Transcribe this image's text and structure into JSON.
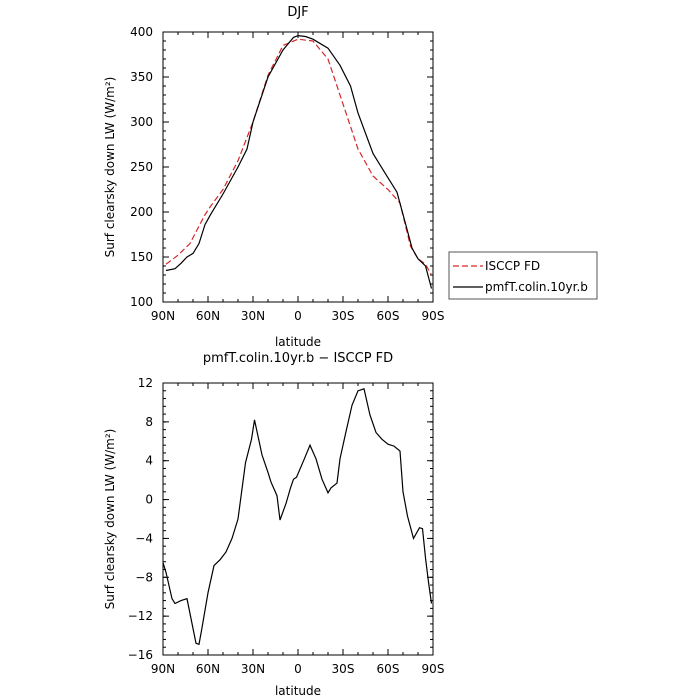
{
  "chart_data": [
    {
      "type": "line",
      "title": "DJF",
      "xlabel": "latitude",
      "ylabel": "Surf clearsky down LW (W/m²)",
      "xlim": [
        90,
        -90
      ],
      "ylim": [
        100,
        400
      ],
      "x_ticks": [
        90,
        60,
        30,
        0,
        -30,
        -60,
        -90
      ],
      "x_tick_labels": [
        "90N",
        "60N",
        "30N",
        "0",
        "30S",
        "60S",
        "90S"
      ],
      "y_ticks": [
        100,
        150,
        200,
        250,
        300,
        350,
        400
      ],
      "y_tick_labels": [
        "100",
        "150",
        "200",
        "250",
        "300",
        "350",
        "400"
      ],
      "legend_position": "outside-right",
      "series": [
        {
          "name": "ISCCP FD",
          "color": "#d62728",
          "dash": "dashed",
          "x": [
            88,
            80,
            72,
            68,
            62,
            58,
            50,
            40,
            30,
            20,
            10,
            0,
            -10,
            -20,
            -30,
            -40,
            -50,
            -60,
            -68,
            -75,
            -80,
            -85,
            -89
          ],
          "y": [
            142,
            152,
            165,
            178,
            197,
            207,
            225,
            257,
            300,
            352,
            385,
            392,
            390,
            370,
            320,
            270,
            240,
            225,
            210,
            162,
            148,
            142,
            130
          ]
        },
        {
          "name": "pmfT.colin.10yr.b",
          "color": "#000000",
          "dash": "solid",
          "x": [
            88,
            82,
            78,
            74,
            70,
            66,
            62,
            58,
            50,
            40,
            34,
            30,
            20,
            10,
            3,
            0,
            -5,
            -10,
            -20,
            -28,
            -35,
            -40,
            -50,
            -60,
            -66,
            -72,
            -76,
            -80,
            -85,
            -89
          ],
          "y": [
            135,
            137,
            143,
            150,
            154,
            165,
            186,
            198,
            220,
            250,
            270,
            300,
            350,
            380,
            394,
            396,
            395,
            392,
            382,
            363,
            340,
            310,
            265,
            238,
            222,
            185,
            160,
            148,
            140,
            115
          ]
        }
      ]
    },
    {
      "type": "line",
      "title": "pmfT.colin.10yr.b − ISCCP FD",
      "xlabel": "latitude",
      "ylabel": "Surf clearsky down LW (W/m²)",
      "xlim": [
        90,
        -90
      ],
      "ylim": [
        -16,
        12
      ],
      "x_ticks": [
        90,
        60,
        30,
        0,
        -30,
        -60,
        -90
      ],
      "x_tick_labels": [
        "90N",
        "60N",
        "30N",
        "0",
        "30S",
        "60S",
        "90S"
      ],
      "y_ticks": [
        -16,
        -12,
        -8,
        -4,
        0,
        4,
        8,
        12
      ],
      "y_tick_labels": [
        "−16",
        "−12",
        "−8",
        "−4",
        "0",
        "4",
        "8",
        "12"
      ],
      "series": [
        {
          "color": "#000000",
          "dash": "solid",
          "x": [
            90,
            88,
            84,
            82,
            78,
            74,
            68,
            66,
            64,
            60,
            56,
            52,
            48,
            44,
            40,
            35,
            31,
            29,
            24,
            20,
            18,
            14,
            12,
            8,
            5,
            3,
            1,
            -4,
            -8,
            -12,
            -16,
            -20,
            -22,
            -26,
            -28,
            -32,
            -36,
            -40,
            -44,
            -48,
            -52,
            -56,
            -60,
            -64,
            -68,
            -70,
            -73,
            -77,
            -81,
            -83,
            -85,
            -87,
            -89
          ],
          "y": [
            -6.5,
            -7.5,
            -10.2,
            -10.7,
            -10.4,
            -10.2,
            -14.8,
            -14.9,
            -13.2,
            -9.6,
            -6.8,
            -6.2,
            -5.4,
            -4.0,
            -2.0,
            3.8,
            6.2,
            8.2,
            4.6,
            2.8,
            1.8,
            0.4,
            -2.1,
            -0.4,
            1.2,
            2.1,
            2.3,
            4.1,
            5.6,
            4.2,
            2.1,
            0.7,
            1.2,
            1.7,
            4.2,
            7.0,
            9.7,
            11.2,
            11.4,
            8.7,
            6.9,
            6.2,
            5.7,
            5.5,
            5.0,
            0.8,
            -1.7,
            -4.0,
            -2.9,
            -3.0,
            -6.0,
            -8.5,
            -10.7
          ]
        }
      ]
    }
  ]
}
